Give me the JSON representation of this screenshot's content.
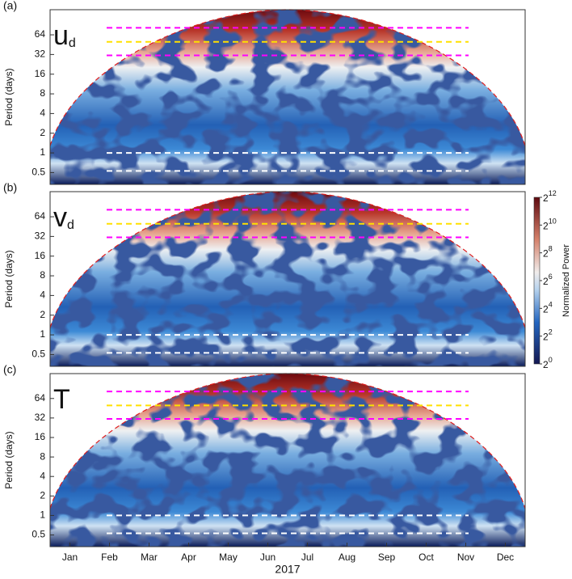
{
  "chart_data": [
    {
      "type": "heatmap",
      "panel": "(a)",
      "var": "u",
      "var_sub": "d",
      "ylabel": "Period (days)",
      "ylim": [
        0.33,
        155
      ],
      "yticks": [
        0.5,
        1,
        2,
        4,
        8,
        16,
        32,
        64
      ],
      "log_base": 2,
      "reference_lines": [
        {
          "value": 82,
          "color": "#ff00ff"
        },
        {
          "value": 50,
          "color": "#ffe000"
        },
        {
          "value": 31,
          "color": "#ff00ff"
        },
        {
          "value": 1,
          "color": "#ffffff"
        },
        {
          "value": 0.53,
          "color": "#ffffff"
        }
      ]
    },
    {
      "type": "heatmap",
      "panel": "(b)",
      "var": "v",
      "var_sub": "d",
      "ylabel": "Period (days)",
      "ylim": [
        0.33,
        155
      ],
      "yticks": [
        0.5,
        1,
        2,
        4,
        8,
        16,
        32,
        64
      ],
      "log_base": 2,
      "reference_lines": [
        {
          "value": 82,
          "color": "#ff00ff"
        },
        {
          "value": 50,
          "color": "#ffe000"
        },
        {
          "value": 31,
          "color": "#ff00ff"
        },
        {
          "value": 1,
          "color": "#ffffff"
        },
        {
          "value": 0.53,
          "color": "#ffffff"
        }
      ],
      "colorbar": {
        "label": "Normalized Power",
        "clim": [
          1,
          4096
        ],
        "log_scale": true,
        "ticks": [
          {
            "value": 1,
            "label": "2",
            "exponent": "0"
          },
          {
            "value": 4,
            "label": "2",
            "exponent": "2"
          },
          {
            "value": 16,
            "label": "2",
            "exponent": "4"
          },
          {
            "value": 64,
            "label": "2",
            "exponent": "6"
          },
          {
            "value": 256,
            "label": "2",
            "exponent": "8"
          },
          {
            "value": 1024,
            "label": "2",
            "exponent": "10"
          },
          {
            "value": 4096,
            "label": "2",
            "exponent": "12"
          }
        ]
      }
    },
    {
      "type": "heatmap",
      "panel": "(c)",
      "var": "T",
      "ylabel": "Period (days)",
      "ylim": [
        0.33,
        155
      ],
      "yticks": [
        0.5,
        1,
        2,
        4,
        8,
        16,
        32,
        64
      ],
      "log_base": 2,
      "reference_lines": [
        {
          "value": 82,
          "color": "#ff00ff"
        },
        {
          "value": 50,
          "color": "#ffe000"
        },
        {
          "value": 31,
          "color": "#ff00ff"
        },
        {
          "value": 1,
          "color": "#ffffff"
        },
        {
          "value": 0.53,
          "color": "#ffffff"
        }
      ],
      "categories": [
        "Jan",
        "Feb",
        "Mar",
        "Apr",
        "May",
        "Jun",
        "Jul",
        "Aug",
        "Sep",
        "Oct",
        "Nov",
        "Dec"
      ],
      "xlabel": "2017"
    }
  ]
}
